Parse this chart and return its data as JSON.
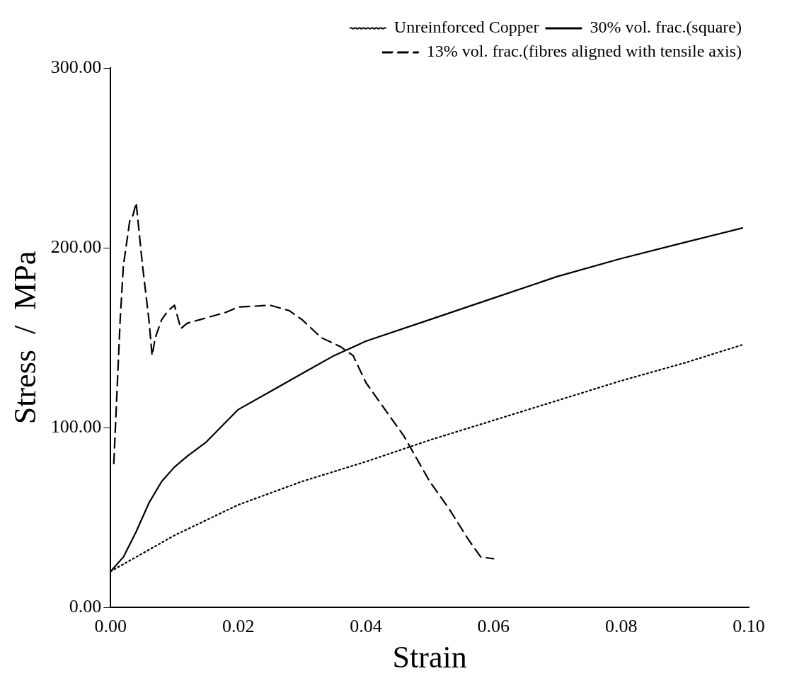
{
  "chart_data": {
    "type": "line",
    "xlabel": "Strain",
    "ylabel": "Stress  /  MPa",
    "legend": "top right",
    "grid": false,
    "marker": "none",
    "xlim": [
      0,
      0.1
    ],
    "ylim": [
      0,
      300
    ],
    "xticks": [
      {
        "value": 0,
        "label": "0.00"
      },
      {
        "value": 0.02,
        "label": "0.02"
      },
      {
        "value": 0.04,
        "label": "0.04"
      },
      {
        "value": 0.06,
        "label": "0.06"
      },
      {
        "value": 0.08,
        "label": "0.08"
      },
      {
        "value": 0.1,
        "label": "0.10"
      }
    ],
    "yticks": [
      {
        "value": 0,
        "label": "0.00"
      },
      {
        "value": 100,
        "label": "100.00"
      },
      {
        "value": 200,
        "label": "200.00"
      },
      {
        "value": 300,
        "label": "300.00"
      }
    ],
    "series": [
      {
        "name": "Unreinforced Copper",
        "color": "#000000",
        "line_style": "dotted",
        "x": [
          0,
          0.005,
          0.01,
          0.02,
          0.03,
          0.04,
          0.05,
          0.06,
          0.07,
          0.08,
          0.09,
          0.099
        ],
        "values": [
          20,
          30,
          40,
          57,
          70,
          81,
          93,
          104,
          115,
          126,
          136,
          146
        ]
      },
      {
        "name": "30% vol. frac.(square)",
        "color": "#000000",
        "line_style": "solid",
        "x": [
          0,
          0.002,
          0.004,
          0.006,
          0.008,
          0.01,
          0.012,
          0.015,
          0.02,
          0.025,
          0.03,
          0.035,
          0.04,
          0.05,
          0.06,
          0.07,
          0.08,
          0.09,
          0.099
        ],
        "values": [
          20,
          28,
          42,
          58,
          70,
          78,
          84,
          92,
          110,
          120,
          130,
          140,
          148,
          160,
          172,
          184,
          194,
          203,
          211
        ]
      },
      {
        "name": "13% vol. frac.(fibres aligned with tensile axis)",
        "color": "#000000",
        "line_style": "dashed",
        "x": [
          0.0005,
          0.001,
          0.0015,
          0.002,
          0.003,
          0.0035,
          0.004,
          0.005,
          0.006,
          0.0065,
          0.007,
          0.008,
          0.009,
          0.01,
          0.011,
          0.012,
          0.014,
          0.016,
          0.018,
          0.02,
          0.025,
          0.028,
          0.03,
          0.033,
          0.036,
          0.038,
          0.04,
          0.043,
          0.046,
          0.05,
          0.053,
          0.056,
          0.058,
          0.06
        ],
        "values": [
          80,
          120,
          160,
          190,
          215,
          218,
          225,
          190,
          160,
          140,
          150,
          160,
          165,
          168,
          155,
          158,
          160,
          162,
          164,
          167,
          168,
          165,
          160,
          150,
          145,
          140,
          125,
          110,
          95,
          70,
          55,
          38,
          28,
          27
        ]
      }
    ]
  }
}
